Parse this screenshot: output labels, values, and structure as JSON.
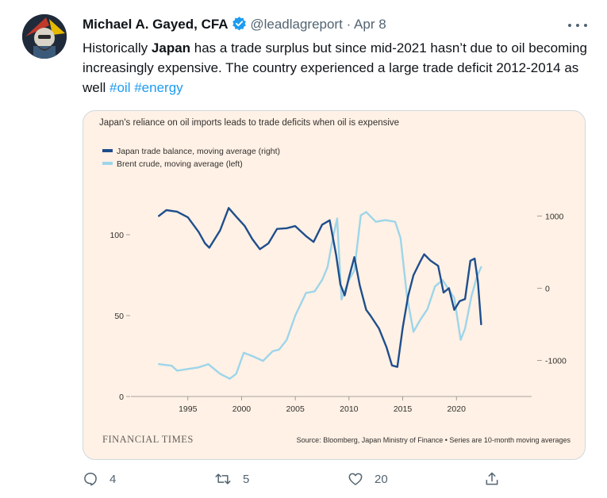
{
  "tweet": {
    "author_name": "Michael A. Gayed, CFA",
    "handle": "@leadlagreport",
    "separator": "·",
    "date": "Apr 8",
    "text_parts": {
      "a": "Historically ",
      "b": "Japan",
      "c": " has a trade surplus but since mid-2021 hasn’t due to oil becoming increasingly expensive. The country experienced a large trade deficit 2012-2014 as well ",
      "tag1": "#oil",
      "tag2": "#energy"
    },
    "icons": {
      "more": "more-icon",
      "verified": "verified-badge-icon",
      "reply": "reply-icon",
      "retweet": "retweet-icon",
      "like": "like-icon",
      "share": "share-icon"
    },
    "counts": {
      "reply": "4",
      "retweet": "5",
      "like": "20"
    }
  },
  "chart_data": {
    "type": "line",
    "title": "Japan's reliance on oil imports leads to trade deficits when oil is expensive",
    "footer_brand": "FINANCIAL TIMES",
    "source": "Source: Bloomberg, Japan Ministry of Finance • Series are 10-month moving averages",
    "colors": {
      "trade": "#1f4e8c",
      "brent": "#9dd5ea",
      "background": "#fff1e5"
    },
    "xlim": [
      1989.7,
      2027.0
    ],
    "x_ticks": [
      1995,
      2000,
      2005,
      2010,
      2015,
      2020
    ],
    "y_left": {
      "lim": [
        0,
        125
      ],
      "ticks": [
        0,
        50,
        100
      ]
    },
    "y_right": {
      "lim": [
        -1500,
        1300
      ],
      "ticks": [
        -1000,
        0,
        1000
      ],
      "tick_labels": [
        "-1000",
        "0",
        "1000"
      ]
    },
    "legend": {
      "position": "top-left"
    },
    "series": [
      {
        "name": "Japan trade balance, moving average (right)",
        "axis": "right",
        "points": [
          [
            1992.3,
            1000
          ],
          [
            1993.0,
            1080
          ],
          [
            1994.0,
            1060
          ],
          [
            1995.0,
            980
          ],
          [
            1996.0,
            780
          ],
          [
            1996.6,
            620
          ],
          [
            1997.0,
            560
          ],
          [
            1998.0,
            800
          ],
          [
            1998.8,
            1110
          ],
          [
            1999.5,
            990
          ],
          [
            2000.3,
            860
          ],
          [
            2001.0,
            680
          ],
          [
            2001.7,
            540
          ],
          [
            2002.5,
            620
          ],
          [
            2003.3,
            820
          ],
          [
            2004.2,
            830
          ],
          [
            2005.0,
            860
          ],
          [
            2006.0,
            720
          ],
          [
            2006.7,
            640
          ],
          [
            2007.5,
            880
          ],
          [
            2008.2,
            940
          ],
          [
            2008.8,
            460
          ],
          [
            2009.2,
            50
          ],
          [
            2009.6,
            -100
          ],
          [
            2010.0,
            150
          ],
          [
            2010.5,
            430
          ],
          [
            2011.0,
            40
          ],
          [
            2011.6,
            -300
          ],
          [
            2012.0,
            -380
          ],
          [
            2012.8,
            -560
          ],
          [
            2013.5,
            -820
          ],
          [
            2014.0,
            -1070
          ],
          [
            2014.5,
            -1090
          ],
          [
            2015.0,
            -550
          ],
          [
            2015.5,
            -110
          ],
          [
            2016.0,
            180
          ],
          [
            2016.6,
            360
          ],
          [
            2017.0,
            470
          ],
          [
            2017.6,
            380
          ],
          [
            2018.3,
            310
          ],
          [
            2018.8,
            -60
          ],
          [
            2019.3,
            0
          ],
          [
            2019.8,
            -300
          ],
          [
            2020.3,
            -180
          ],
          [
            2020.8,
            -150
          ],
          [
            2021.3,
            380
          ],
          [
            2021.7,
            410
          ],
          [
            2022.0,
            90
          ],
          [
            2022.3,
            -500
          ]
        ]
      },
      {
        "name": "Brent crude, moving average (left)",
        "axis": "left",
        "points": [
          [
            1992.3,
            20
          ],
          [
            1993.5,
            19
          ],
          [
            1994.0,
            16
          ],
          [
            1995.0,
            17
          ],
          [
            1996.0,
            18
          ],
          [
            1996.9,
            20
          ],
          [
            1998.0,
            14
          ],
          [
            1998.9,
            11
          ],
          [
            1999.5,
            14
          ],
          [
            2000.2,
            27
          ],
          [
            2001.0,
            25
          ],
          [
            2002.0,
            22
          ],
          [
            2002.9,
            28
          ],
          [
            2003.5,
            29
          ],
          [
            2004.2,
            35
          ],
          [
            2005.0,
            50
          ],
          [
            2006.0,
            64
          ],
          [
            2006.8,
            65
          ],
          [
            2007.5,
            72
          ],
          [
            2008.0,
            80
          ],
          [
            2008.5,
            98
          ],
          [
            2008.9,
            110
          ],
          [
            2009.3,
            60
          ],
          [
            2010.0,
            72
          ],
          [
            2010.5,
            78
          ],
          [
            2011.1,
            112
          ],
          [
            2011.6,
            114
          ],
          [
            2012.5,
            108
          ],
          [
            2013.4,
            109
          ],
          [
            2014.3,
            108
          ],
          [
            2014.8,
            98
          ],
          [
            2015.4,
            62
          ],
          [
            2016.0,
            40
          ],
          [
            2016.6,
            47
          ],
          [
            2017.3,
            54
          ],
          [
            2018.0,
            68
          ],
          [
            2018.7,
            72
          ],
          [
            2019.2,
            67
          ],
          [
            2019.8,
            61
          ],
          [
            2020.4,
            35
          ],
          [
            2020.8,
            42
          ],
          [
            2021.4,
            62
          ],
          [
            2021.9,
            74
          ],
          [
            2022.3,
            80
          ]
        ]
      }
    ]
  }
}
